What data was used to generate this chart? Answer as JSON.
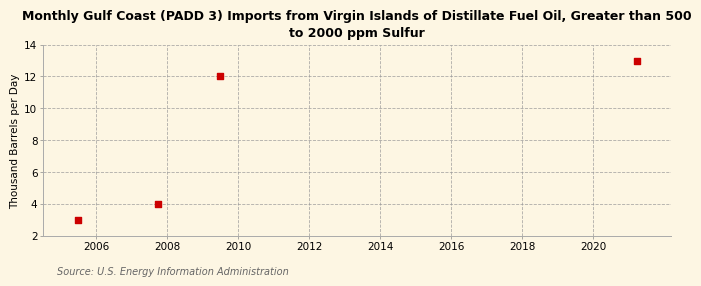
{
  "title": "Monthly Gulf Coast (PADD 3) Imports from Virgin Islands of Distillate Fuel Oil, Greater than 500\nto 2000 ppm Sulfur",
  "ylabel": "Thousand Barrels per Day",
  "source": "Source: U.S. Energy Information Administration",
  "background_color": "#fdf6e3",
  "data_points_x": [
    2005.5,
    2007.75,
    2009.5,
    2021.25
  ],
  "data_points_y": [
    3.0,
    4.0,
    12.0,
    13.0
  ],
  "marker_color": "#cc0000",
  "marker_size": 4,
  "xlim": [
    2004.5,
    2022.2
  ],
  "ylim": [
    2,
    14
  ],
  "xticks": [
    2006,
    2008,
    2010,
    2012,
    2014,
    2016,
    2018,
    2020
  ],
  "yticks": [
    2,
    4,
    6,
    8,
    10,
    12,
    14
  ],
  "grid_color": "#999999",
  "title_fontsize": 9,
  "tick_fontsize": 7.5,
  "ylabel_fontsize": 7.5,
  "source_fontsize": 7,
  "source_color": "#666666"
}
